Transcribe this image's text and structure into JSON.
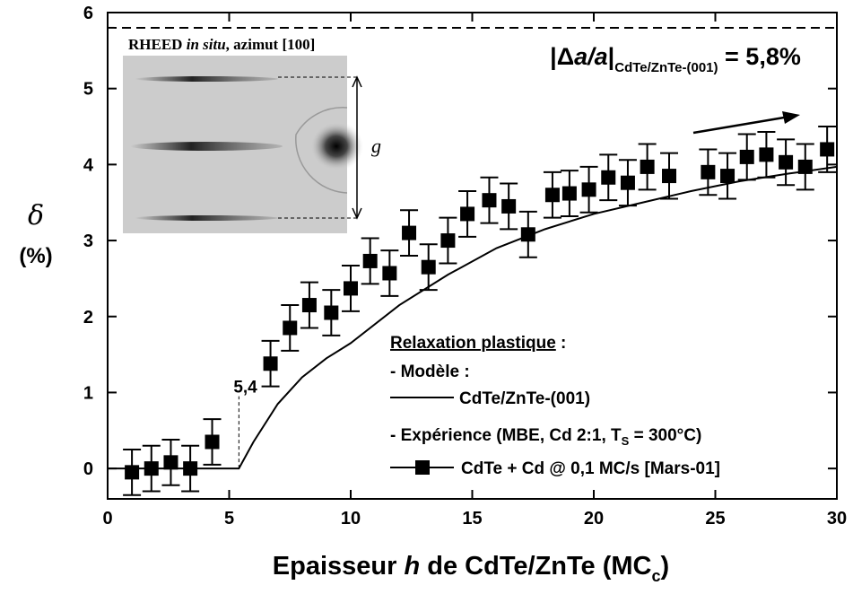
{
  "chart_data": {
    "type": "scatter",
    "xlabel": {
      "pre": "Epaisseur ",
      "italic": "h",
      "mid": " de CdTe/ZnTe (MC",
      "sub": "c",
      "post": ")"
    },
    "ylabel": {
      "symbol": "δ",
      "unit": "(%)"
    },
    "xlim": [
      0,
      30
    ],
    "ylim": [
      -0.4,
      6
    ],
    "xticks": [
      0,
      5,
      10,
      15,
      20,
      25,
      30
    ],
    "yticks": [
      0,
      1,
      2,
      3,
      4,
      5,
      6
    ],
    "series": [
      {
        "name": "CdTe/ZnTe-(001)",
        "kind": "line",
        "color": "#000000",
        "x": [
          0,
          5.4,
          6,
          7,
          8,
          9,
          10,
          12,
          14,
          16,
          18,
          20,
          22,
          24,
          26,
          28,
          30
        ],
        "values": [
          0,
          0,
          0.35,
          0.85,
          1.2,
          1.45,
          1.65,
          2.15,
          2.55,
          2.9,
          3.15,
          3.35,
          3.5,
          3.65,
          3.78,
          3.88,
          3.97
        ]
      },
      {
        "name": "CdTe + Cd @ 0,1 MC/s [Mars-01]",
        "kind": "points",
        "color": "#000000",
        "error": 0.3,
        "x": [
          1.0,
          1.8,
          2.6,
          3.4,
          4.3,
          6.7,
          7.5,
          8.3,
          9.2,
          10.0,
          10.8,
          11.6,
          12.4,
          13.2,
          14.0,
          14.8,
          15.7,
          16.5,
          17.3,
          18.3,
          19.0,
          19.8,
          20.6,
          21.4,
          22.2,
          23.1,
          24.7,
          25.5,
          26.3,
          27.1,
          27.9,
          28.7,
          29.6
        ],
        "values": [
          -0.05,
          0.0,
          0.08,
          0.0,
          0.35,
          1.38,
          1.85,
          2.15,
          2.05,
          2.37,
          2.73,
          2.57,
          3.1,
          2.65,
          3.0,
          3.35,
          3.53,
          3.45,
          3.08,
          3.6,
          3.62,
          3.67,
          3.83,
          3.76,
          3.97,
          3.85,
          3.9,
          3.85,
          4.1,
          4.13,
          4.03,
          3.97,
          4.2
        ]
      }
    ],
    "threshold": {
      "value": 5.4,
      "label": "5,4"
    },
    "mismatch_line": 5.8,
    "mismatch_text": {
      "open": "|Δ",
      "italic": "a/a",
      "close": "|",
      "sub": "CdTe/ZnTe-(001)",
      "post": " = 5,8%"
    },
    "inset": {
      "bold": "RHEED ",
      "italic": "in situ",
      "rest": ", azimut [100]",
      "g": "g"
    },
    "legend": {
      "heading": "Relaxation plastique",
      "colon": " :",
      "model": "- Modèle :",
      "experiment": "- Expérience (MBE, Cd 2:1, T",
      "experiment_sub": "S",
      "experiment_post": " = 300°C)"
    }
  }
}
